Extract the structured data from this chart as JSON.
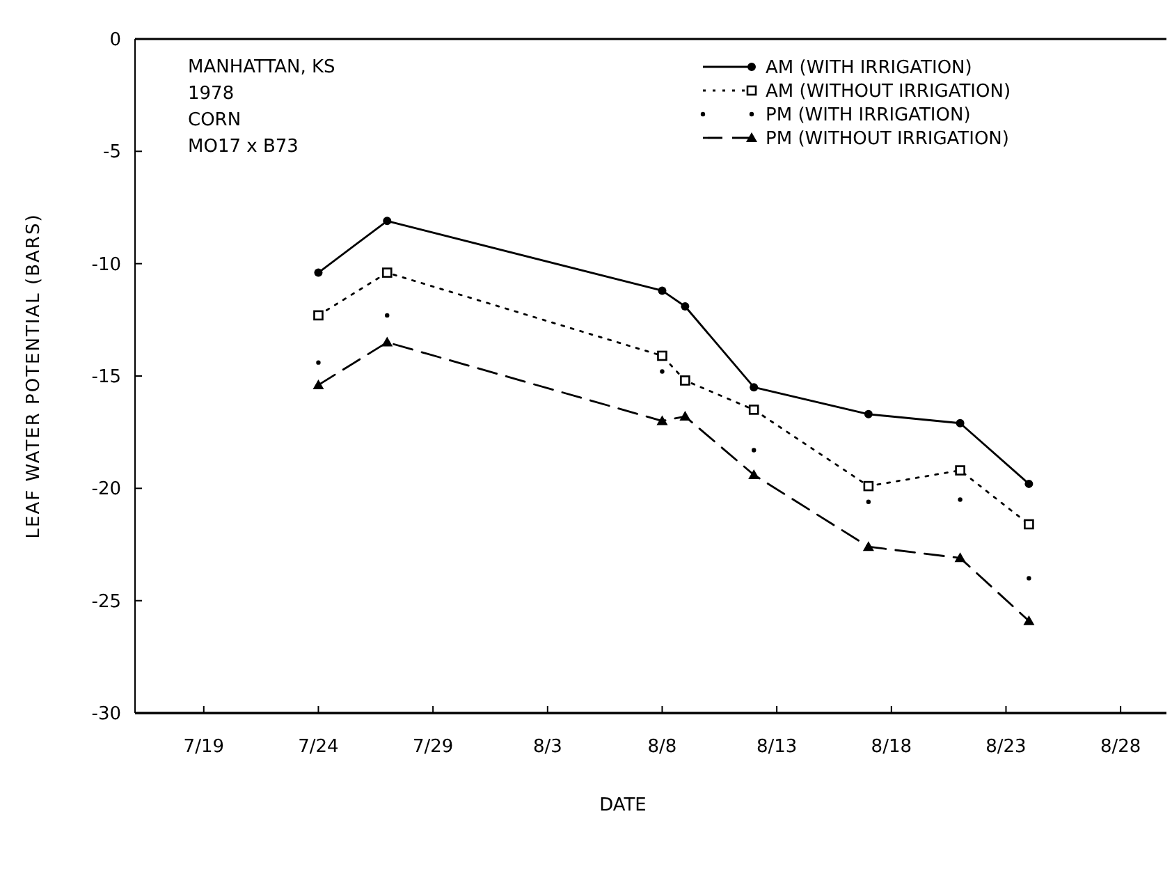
{
  "chart_data": {
    "type": "line",
    "xlabel": "DATE",
    "ylabel": "LEAF WATER POTENTIAL (BARS)",
    "annotations": [
      "MANHATTAN, KS",
      "1978",
      "CORN",
      "MO17 x B73"
    ],
    "xlim": [
      "1978-07-16",
      "1978-08-30"
    ],
    "xticks": [
      {
        "value": "1978-07-19",
        "label": "7/19"
      },
      {
        "value": "1978-07-24",
        "label": "7/24"
      },
      {
        "value": "1978-07-29",
        "label": "7/29"
      },
      {
        "value": "1978-08-03",
        "label": "8/3"
      },
      {
        "value": "1978-08-08",
        "label": "8/8"
      },
      {
        "value": "1978-08-13",
        "label": "8/13"
      },
      {
        "value": "1978-08-18",
        "label": "8/18"
      },
      {
        "value": "1978-08-23",
        "label": "8/23"
      },
      {
        "value": "1978-08-28",
        "label": "8/28"
      }
    ],
    "ylim": [
      -30,
      0
    ],
    "yticks": [
      -30,
      -25,
      -20,
      -15,
      -10,
      -5,
      0
    ],
    "grid": false,
    "legend": "top right",
    "series": [
      {
        "name": "AM (WITH IRRIGATION)",
        "color": "#000000",
        "marker": "circle",
        "line_style": "solid",
        "x": [
          "1978-07-24",
          "1978-07-27",
          "1978-08-08",
          "1978-08-09",
          "1978-08-12",
          "1978-08-17",
          "1978-08-21",
          "1978-08-24"
        ],
        "values": [
          -10.4,
          -8.1,
          -11.2,
          -11.9,
          -15.5,
          -16.7,
          -17.1,
          -19.8
        ]
      },
      {
        "name": "AM (WITHOUT IRRIGATION)",
        "color": "#000000",
        "marker": "square",
        "line_style": "dotted",
        "x": [
          "1978-07-24",
          "1978-07-27",
          "1978-08-08",
          "1978-08-09",
          "1978-08-12",
          "1978-08-17",
          "1978-08-21",
          "1978-08-24"
        ],
        "values": [
          -12.3,
          -10.4,
          -14.1,
          -15.2,
          -16.5,
          -19.9,
          -19.2,
          -21.6
        ]
      },
      {
        "name": "PM (WITH IRRIGATION)",
        "type": "scatter",
        "color": "#000000",
        "marker": "circle",
        "line_style": "none",
        "x": [
          "1978-07-24",
          "1978-07-27",
          "1978-08-08",
          "1978-08-12",
          "1978-08-17",
          "1978-08-21",
          "1978-08-24"
        ],
        "values": [
          -14.4,
          -12.3,
          -14.8,
          -18.3,
          -20.6,
          -20.5,
          -24.0
        ]
      },
      {
        "name": "PM (WITHOUT IRRIGATION)",
        "color": "#000000",
        "marker": "triangle",
        "line_style": "dashed",
        "x": [
          "1978-07-24",
          "1978-07-27",
          "1978-08-08",
          "1978-08-09",
          "1978-08-12",
          "1978-08-17",
          "1978-08-21",
          "1978-08-24"
        ],
        "values": [
          -15.4,
          -13.5,
          -17.0,
          -16.8,
          -19.4,
          -22.6,
          -23.1,
          -25.9
        ]
      }
    ]
  }
}
